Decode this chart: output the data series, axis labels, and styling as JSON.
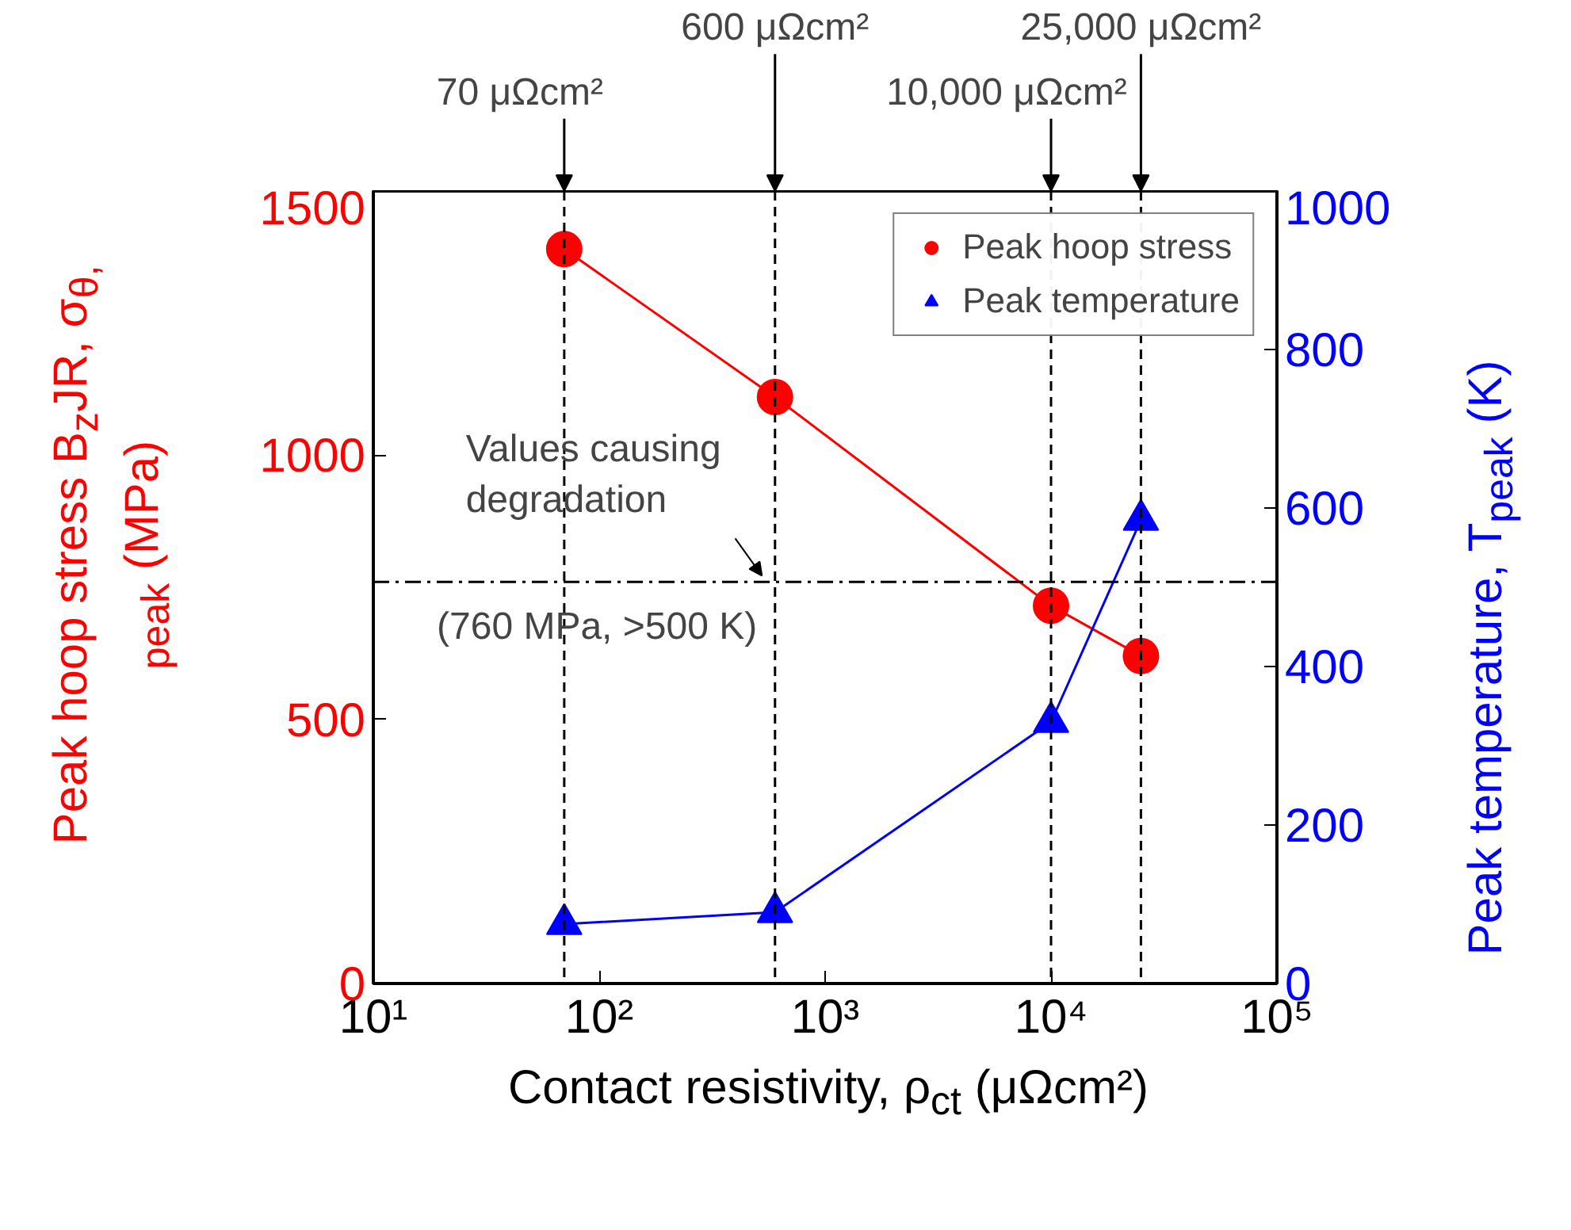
{
  "chart_data": {
    "type": "line",
    "xlabel": "Contact resistivity, ρ$_{ct}$ (μΩcm²)",
    "ylabel": "Peak hoop stress B$_{z}$JR,\nσ$_{θ, peak}$ (MPa)",
    "y2label": "Peak temperature, T$_{peak}$ (K)",
    "log": "x",
    "xlim": [
      10,
      100000
    ],
    "xticks": [
      {
        "value": 10,
        "label": "10¹"
      },
      {
        "value": 100,
        "label": "10²"
      },
      {
        "value": 1000,
        "label": "10³"
      },
      {
        "value": 10000,
        "label": "10⁴"
      },
      {
        "value": 100000,
        "label": "10⁵"
      }
    ],
    "ylim": [
      0,
      1500
    ],
    "yticks": [
      0,
      500,
      1000,
      1500
    ],
    "y2lim": [
      0,
      1000
    ],
    "y2ticks": [
      0,
      200,
      400,
      600,
      800,
      1000
    ],
    "grid": false,
    "legend": "top right",
    "series": [
      {
        "name": "Peak hoop stress",
        "color": "#ff0000",
        "marker": "circle",
        "x": [
          70,
          600,
          10000,
          25000
        ],
        "values": [
          1390,
          1110,
          715,
          620
        ]
      },
      {
        "name": "Peak temperature",
        "color": "#0000ff",
        "marker": "triangle",
        "axis": "y2",
        "x": [
          70,
          600,
          10000,
          25000
        ],
        "values": [
          75,
          90,
          330,
          585
        ]
      }
    ],
    "ref_lines": [
      {
        "axis": "x",
        "value": 70,
        "label": "70 μΩcm²",
        "line_style": "dashed",
        "color": "#000000"
      },
      {
        "axis": "x",
        "value": 600,
        "label": "600 μΩcm²",
        "line_style": "dashed",
        "color": "#000000"
      },
      {
        "axis": "x",
        "value": 10000,
        "label": "10,000 μΩcm²",
        "line_style": "dashed",
        "color": "#000000"
      },
      {
        "axis": "x",
        "value": 25000,
        "label": "25,000 μΩcm²",
        "line_style": "dashed",
        "color": "#000000"
      },
      {
        "axis": "y",
        "value": 760,
        "line_style": "dashdot",
        "color": "#000000"
      }
    ],
    "annotations": [
      {
        "text": "Values causing\ndegradation",
        "x": 500,
        "y": 760
      },
      "(760 MPa, >500 K)"
    ]
  }
}
